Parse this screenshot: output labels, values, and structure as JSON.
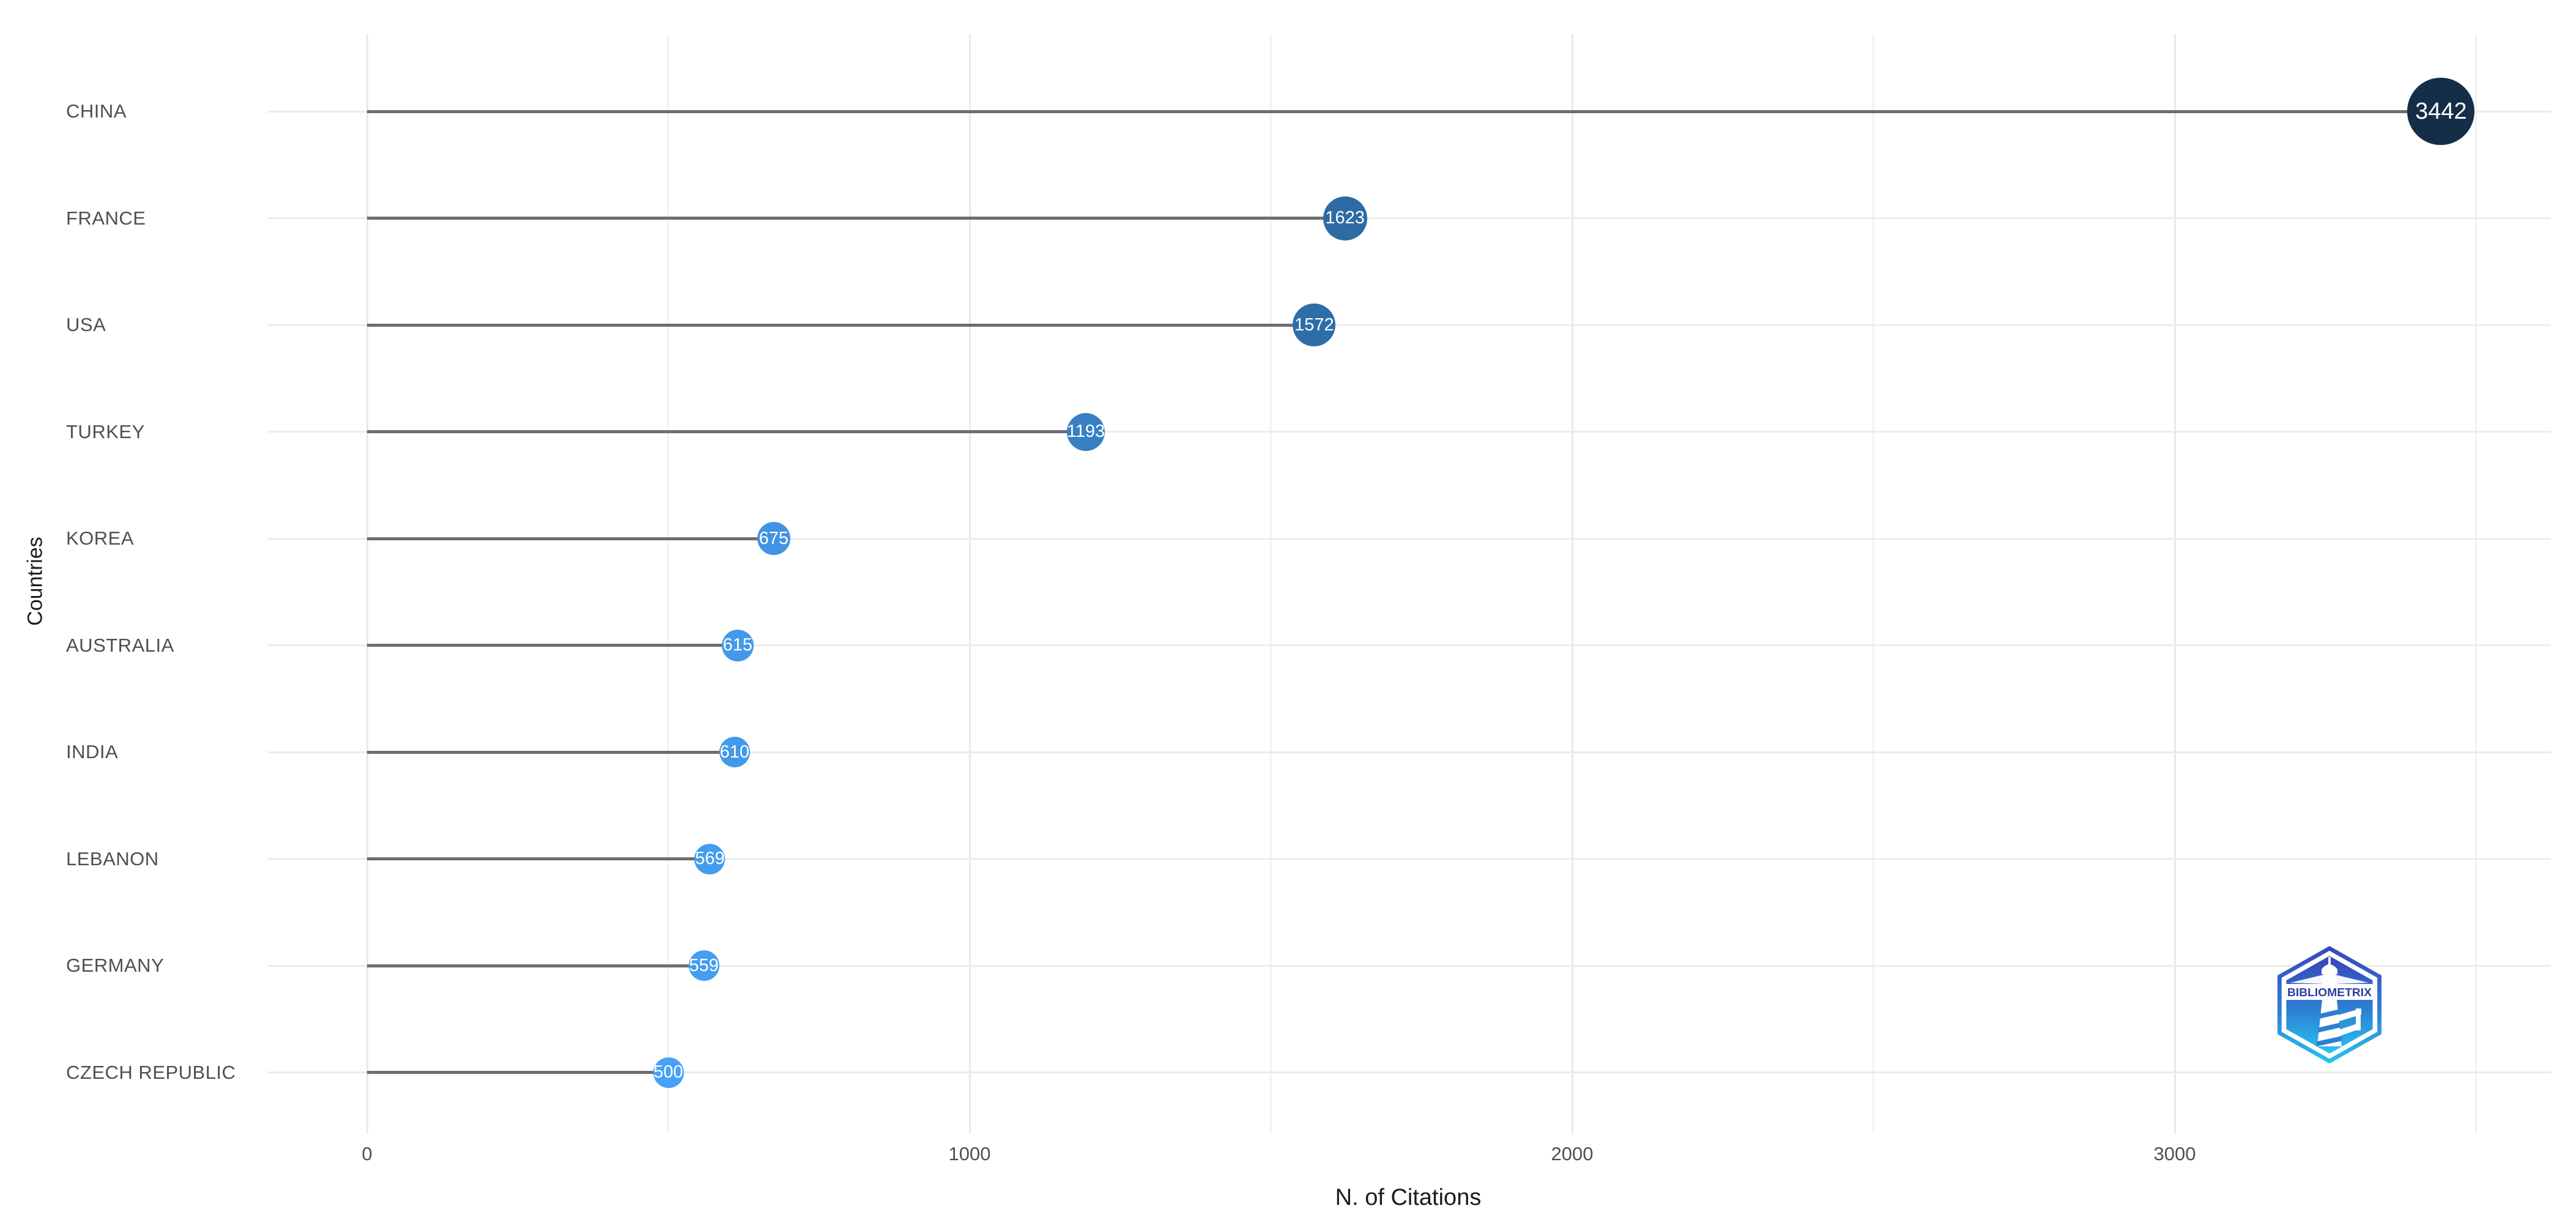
{
  "chart_data": {
    "type": "scatter",
    "subtype": "lollipop",
    "title": "",
    "xlabel": "N. of Citations",
    "ylabel": "Countries",
    "categories": [
      "CHINA",
      "FRANCE",
      "USA",
      "TURKEY",
      "KOREA",
      "AUSTRALIA",
      "INDIA",
      "LEBANON",
      "GERMANY",
      "CZECH REPUBLIC"
    ],
    "values": [
      3442,
      1623,
      1572,
      1193,
      675,
      615,
      610,
      569,
      559,
      500
    ],
    "value_labels": [
      "3442",
      "1623",
      "1572",
      "1193",
      "675",
      "615",
      "610",
      "569",
      "559",
      "500"
    ],
    "point_colors": [
      "#152e47",
      "#2d6ba5",
      "#2e6da8",
      "#3780c3",
      "#4294e2",
      "#4399e8",
      "#4399e9",
      "#459cee",
      "#459df0",
      "#47a1f5"
    ],
    "point_radii": [
      55,
      36,
      35,
      31,
      27,
      26,
      25,
      25,
      25,
      25
    ],
    "xlim": [
      0,
      3600
    ],
    "x_major_tick_labels": [
      "0",
      "1000",
      "2000",
      "3000"
    ],
    "x_major_tick_values": [
      0,
      1000,
      2000,
      3000
    ],
    "x_minor_tick_values": [
      500,
      1500,
      2500,
      3500
    ],
    "grid": true,
    "legend": "none"
  },
  "colors": {
    "background": "#ffffff",
    "stem": "#6e6e6e",
    "grid_major": "#e9e9e9",
    "grid_minor": "#f2f2f2",
    "grid_row": "#ececec",
    "axis_text": "#4f4f4f",
    "axis_title": "#1c1c1c",
    "dot_label": "#ffffff"
  },
  "logo": {
    "text": "BIBLIOMETRIX",
    "hex_top": "#3845bb",
    "hex_mid": "#2e7fd2",
    "hex_bottom": "#27c3f0",
    "text_color": "#2e3f9f",
    "white": "#ffffff"
  }
}
